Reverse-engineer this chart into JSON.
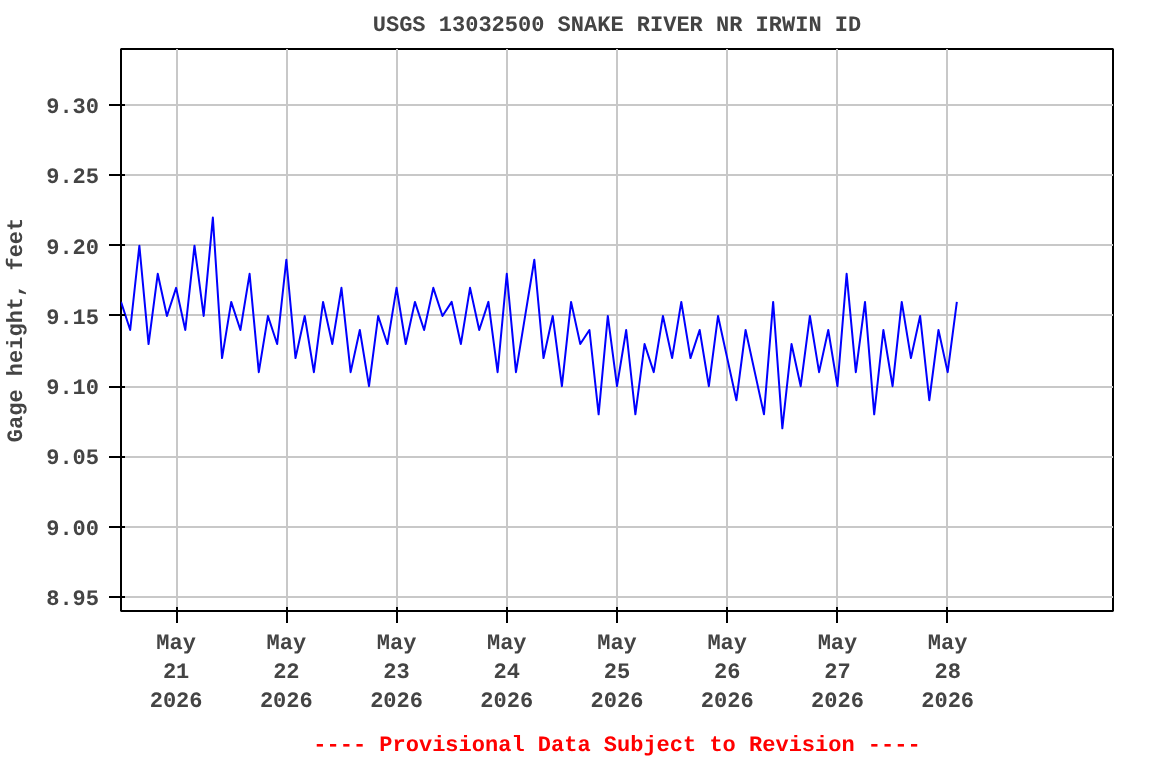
{
  "chart_data": {
    "type": "line",
    "title": "USGS 13032500 SNAKE RIVER NR IRWIN ID",
    "ylabel": "Gage height, feet",
    "annotations": [
      "---- Provisional Data Subject to Revision ----"
    ],
    "x": [
      "2026-05-20T12:00",
      "2026-05-20T14:00",
      "2026-05-20T16:00",
      "2026-05-20T18:00",
      "2026-05-20T20:00",
      "2026-05-20T22:00",
      "2026-05-21T00:00",
      "2026-05-21T02:00",
      "2026-05-21T04:00",
      "2026-05-21T06:00",
      "2026-05-21T08:00",
      "2026-05-21T10:00",
      "2026-05-21T12:00",
      "2026-05-21T14:00",
      "2026-05-21T16:00",
      "2026-05-21T18:00",
      "2026-05-21T20:00",
      "2026-05-21T22:00",
      "2026-05-22T00:00",
      "2026-05-22T02:00",
      "2026-05-22T04:00",
      "2026-05-22T06:00",
      "2026-05-22T08:00",
      "2026-05-22T10:00",
      "2026-05-22T12:00",
      "2026-05-22T14:00",
      "2026-05-22T16:00",
      "2026-05-22T18:00",
      "2026-05-22T20:00",
      "2026-05-22T22:00",
      "2026-05-23T00:00",
      "2026-05-23T02:00",
      "2026-05-23T04:00",
      "2026-05-23T06:00",
      "2026-05-23T08:00",
      "2026-05-23T10:00",
      "2026-05-23T12:00",
      "2026-05-23T14:00",
      "2026-05-23T16:00",
      "2026-05-23T18:00",
      "2026-05-23T20:00",
      "2026-05-23T22:00",
      "2026-05-24T00:00",
      "2026-05-24T02:00",
      "2026-05-24T04:00",
      "2026-05-24T06:00",
      "2026-05-24T08:00",
      "2026-05-24T10:00",
      "2026-05-24T12:00",
      "2026-05-24T14:00",
      "2026-05-24T16:00",
      "2026-05-24T18:00",
      "2026-05-24T20:00",
      "2026-05-24T22:00",
      "2026-05-25T00:00",
      "2026-05-25T02:00",
      "2026-05-25T04:00",
      "2026-05-25T06:00",
      "2026-05-25T08:00",
      "2026-05-25T10:00",
      "2026-05-25T12:00",
      "2026-05-25T14:00",
      "2026-05-25T16:00",
      "2026-05-25T18:00",
      "2026-05-25T20:00",
      "2026-05-25T22:00",
      "2026-05-26T00:00",
      "2026-05-26T02:00",
      "2026-05-26T04:00",
      "2026-05-26T06:00",
      "2026-05-26T08:00",
      "2026-05-26T10:00",
      "2026-05-26T12:00",
      "2026-05-26T14:00",
      "2026-05-26T16:00",
      "2026-05-26T18:00",
      "2026-05-26T20:00",
      "2026-05-26T22:00",
      "2026-05-27T00:00",
      "2026-05-27T02:00",
      "2026-05-27T04:00",
      "2026-05-27T06:00",
      "2026-05-27T08:00",
      "2026-05-27T10:00",
      "2026-05-27T12:00",
      "2026-05-27T14:00",
      "2026-05-27T16:00",
      "2026-05-27T18:00",
      "2026-05-27T20:00",
      "2026-05-27T22:00",
      "2026-05-28T00:00",
      "2026-05-28T02:00"
    ],
    "series": [
      {
        "color": "#0000ff",
        "values": [
          9.16,
          9.14,
          9.2,
          9.13,
          9.18,
          9.15,
          9.17,
          9.14,
          9.2,
          9.15,
          9.22,
          9.12,
          9.16,
          9.14,
          9.18,
          9.11,
          9.15,
          9.13,
          9.19,
          9.12,
          9.15,
          9.11,
          9.16,
          9.13,
          9.17,
          9.11,
          9.14,
          9.1,
          9.15,
          9.13,
          9.17,
          9.13,
          9.16,
          9.14,
          9.17,
          9.15,
          9.16,
          9.13,
          9.17,
          9.14,
          9.16,
          9.11,
          9.18,
          9.11,
          9.15,
          9.19,
          9.12,
          9.15,
          9.1,
          9.16,
          9.13,
          9.14,
          9.08,
          9.15,
          9.1,
          9.14,
          9.08,
          9.13,
          9.11,
          9.15,
          9.12,
          9.16,
          9.12,
          9.14,
          9.1,
          9.15,
          9.12,
          9.09,
          9.14,
          9.11,
          9.08,
          9.16,
          9.07,
          9.13,
          9.1,
          9.15,
          9.11,
          9.14,
          9.1,
          9.18,
          9.11,
          9.16,
          9.08,
          9.14,
          9.1,
          9.16,
          9.12,
          9.15,
          9.09,
          9.14,
          9.11,
          9.16
        ]
      }
    ],
    "xlim": [
      "2026-05-20T12:00",
      "2026-05-29T12:00"
    ],
    "xticks": [
      {
        "value": "2026-05-21",
        "label": "May\n21\n2026"
      },
      {
        "value": "2026-05-22",
        "label": "May\n22\n2026"
      },
      {
        "value": "2026-05-23",
        "label": "May\n23\n2026"
      },
      {
        "value": "2026-05-24",
        "label": "May\n24\n2026"
      },
      {
        "value": "2026-05-25",
        "label": "May\n25\n2026"
      },
      {
        "value": "2026-05-26",
        "label": "May\n26\n2026"
      },
      {
        "value": "2026-05-27",
        "label": "May\n27\n2026"
      },
      {
        "value": "2026-05-28",
        "label": "May\n28\n2026"
      }
    ],
    "ylim": [
      8.94,
      9.34
    ],
    "yticks": [
      {
        "value": 8.95,
        "label": "8.95"
      },
      {
        "value": 9.0,
        "label": "9.00"
      },
      {
        "value": 9.05,
        "label": "9.05"
      },
      {
        "value": 9.1,
        "label": "9.10"
      },
      {
        "value": 9.15,
        "label": "9.15"
      },
      {
        "value": 9.2,
        "label": "9.20"
      },
      {
        "value": 9.25,
        "label": "9.25"
      },
      {
        "value": 9.3,
        "label": "9.30"
      }
    ],
    "grid": true
  }
}
